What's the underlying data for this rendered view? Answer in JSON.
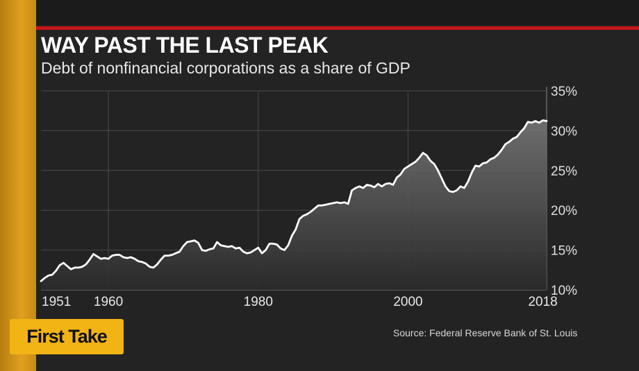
{
  "header": {
    "title": "WAY PAST THE LAST PEAK",
    "subtitle": "Debt of nonfinancial corporations as a share of GDP"
  },
  "source": "Source: Federal Reserve Bank of St. Louis",
  "badge": {
    "label": "First Take",
    "color": "#f2b315"
  },
  "colors": {
    "accent_rule": "#c8141b",
    "line": "#ffffff",
    "background": "#232323"
  },
  "chart_data": {
    "type": "area",
    "title": "WAY PAST THE LAST PEAK",
    "subtitle": "Debt of nonfinancial corporations as a share of GDP",
    "xlabel": "",
    "ylabel": "",
    "xlim": [
      1951,
      2018.5
    ],
    "ylim": [
      10,
      35
    ],
    "x_ticks": [
      1951,
      1960,
      1980,
      2000,
      2018
    ],
    "x_tick_labels": [
      "1951",
      "1960",
      "1980",
      "2000",
      "2018"
    ],
    "y_ticks": [
      10,
      15,
      20,
      25,
      30,
      35
    ],
    "y_tick_labels": [
      "10%",
      "15%",
      "20%",
      "25%",
      "30%",
      "35%"
    ],
    "y_axis_side": "right",
    "grid": true,
    "series": [
      {
        "x": [
          1951,
          1951.5,
          1952,
          1952.5,
          1953,
          1953.5,
          1954,
          1954.5,
          1955,
          1955.5,
          1956,
          1956.5,
          1957,
          1957.5,
          1958,
          1958.5,
          1959,
          1959.5,
          1960,
          1960.5,
          1961,
          1961.5,
          1962,
          1962.5,
          1963,
          1963.5,
          1964,
          1964.5,
          1965,
          1965.5,
          1966,
          1966.5,
          1967,
          1967.5,
          1968,
          1968.5,
          1969,
          1969.5,
          1970,
          1970.5,
          1971,
          1971.5,
          1972,
          1972.5,
          1973,
          1973.5,
          1974,
          1974.5,
          1975,
          1975.5,
          1976,
          1976.5,
          1977,
          1977.5,
          1978,
          1978.5,
          1979,
          1979.5,
          1980,
          1980.5,
          1981,
          1981.5,
          1982,
          1982.5,
          1983,
          1983.5,
          1984,
          1984.5,
          1985,
          1985.5,
          1986,
          1986.5,
          1987,
          1987.5,
          1988,
          1988.5,
          1989,
          1989.5,
          1990,
          1990.5,
          1991,
          1991.5,
          1992,
          1992.5,
          1993,
          1993.5,
          1994,
          1994.5,
          1995,
          1995.5,
          1996,
          1996.5,
          1997,
          1997.5,
          1998,
          1998.5,
          1999,
          1999.5,
          2000,
          2000.5,
          2001,
          2001.5,
          2002,
          2002.5,
          2003,
          2003.5,
          2004,
          2004.5,
          2005,
          2005.5,
          2006,
          2006.5,
          2007,
          2007.5,
          2008,
          2008.5,
          2009,
          2009.5,
          2010,
          2010.5,
          2011,
          2011.5,
          2012,
          2012.5,
          2013,
          2013.5,
          2014,
          2014.5,
          2015,
          2015.5,
          2016,
          2016.5,
          2017,
          2017.5,
          2018,
          2018.5
        ],
        "values": [
          11.1,
          11.5,
          11.8,
          11.9,
          12.4,
          13.1,
          13.4,
          13.0,
          12.6,
          12.8,
          12.8,
          12.9,
          13.2,
          13.8,
          14.5,
          14.2,
          13.9,
          14.0,
          13.9,
          14.3,
          14.4,
          14.4,
          14.1,
          14.0,
          14.1,
          13.9,
          13.6,
          13.5,
          13.3,
          12.9,
          12.8,
          13.2,
          13.8,
          14.3,
          14.3,
          14.4,
          14.6,
          14.8,
          15.5,
          16.0,
          16.1,
          16.2,
          15.9,
          15.0,
          14.9,
          15.1,
          15.2,
          16.0,
          15.6,
          15.5,
          15.4,
          15.5,
          15.2,
          15.3,
          14.8,
          14.6,
          14.7,
          15.0,
          15.3,
          14.6,
          15.0,
          15.8,
          15.8,
          15.7,
          15.2,
          15.0,
          15.6,
          16.8,
          17.6,
          18.9,
          19.3,
          19.5,
          19.8,
          20.2,
          20.6,
          20.6,
          20.7,
          20.8,
          20.9,
          21.0,
          20.9,
          21.0,
          20.8,
          22.5,
          22.8,
          23.0,
          22.8,
          23.2,
          23.1,
          22.9,
          23.3,
          23.0,
          23.3,
          23.4,
          23.2,
          24.1,
          24.5,
          25.2,
          25.5,
          25.8,
          26.1,
          26.6,
          27.2,
          26.9,
          26.2,
          25.8,
          25.0,
          24.0,
          23.0,
          22.4,
          22.3,
          22.5,
          23.0,
          22.8,
          23.6,
          24.7,
          25.6,
          25.5,
          25.9,
          26.0,
          26.4,
          26.6,
          27.0,
          27.6,
          28.3,
          28.6,
          29.0,
          29.2,
          29.8,
          30.3,
          31.1,
          31.0,
          31.2,
          31.0,
          31.3,
          31.2
        ]
      }
    ]
  }
}
